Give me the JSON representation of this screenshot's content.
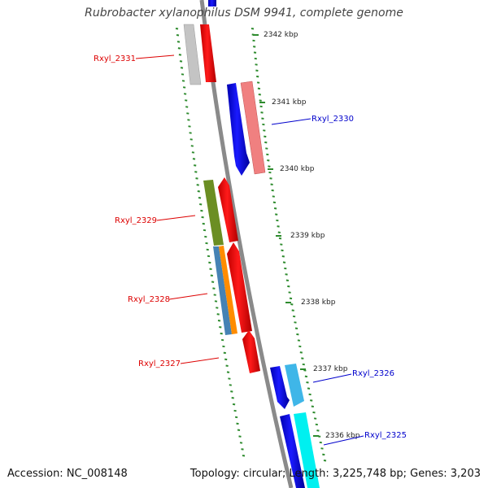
{
  "title": "Rubrobacter xylanophilus DSM 9941, complete genome",
  "footer": {
    "accession": "Accession: NC_008148",
    "topology": "Topology: circular; Length: 3,225,748 bp; Genes: 3,203"
  },
  "colors": {
    "backbone": "#8a8a8a",
    "tick_marks": "#2e8b2e",
    "forward_label": "#0000cc",
    "reverse_label": "#dd0000",
    "cds_forward": "#0000ee",
    "cds_reverse": "#ee0000"
  },
  "kbp_marks": [
    "2342 kbp",
    "2341 kbp",
    "2340 kbp",
    "2339 kbp",
    "2338 kbp",
    "2337 kbp",
    "2336 kbp"
  ],
  "gene_labels": [
    {
      "text": "Rxyl_2331",
      "strand": "reverse"
    },
    {
      "text": "Rxyl_2330",
      "strand": "forward"
    },
    {
      "text": "Rxyl_2329",
      "strand": "reverse"
    },
    {
      "text": "Rxyl_2328",
      "strand": "reverse"
    },
    {
      "text": "Rxyl_2327",
      "strand": "reverse"
    },
    {
      "text": "Rxyl_2326",
      "strand": "forward"
    },
    {
      "text": "Rxyl_2325",
      "strand": "forward"
    }
  ]
}
